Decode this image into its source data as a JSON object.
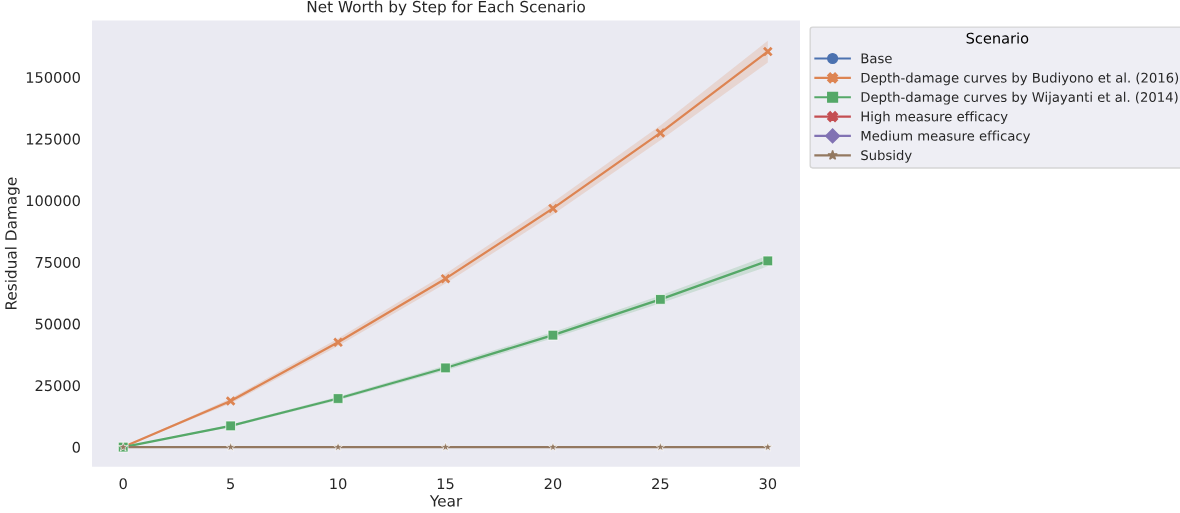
{
  "chart_data": {
    "type": "line",
    "title": "Net Worth by Step for Each Scenario",
    "xlabel": "Year",
    "ylabel": "Residual Damage",
    "legend_title": "Scenario",
    "legend": "top right",
    "grid": false,
    "x": [
      0,
      5,
      10,
      15,
      20,
      25,
      30
    ],
    "xlim": [
      -1.45,
      31.5
    ],
    "xticks": [
      0,
      5,
      10,
      15,
      20,
      25,
      30
    ],
    "ylim": [
      -8000,
      173000
    ],
    "yticks": [
      0,
      25000,
      50000,
      75000,
      100000,
      125000,
      150000
    ],
    "series": [
      {
        "name": "Base",
        "color": "#4c72b0",
        "marker": "circle",
        "values": [
          null,
          null,
          null,
          null,
          null,
          null,
          null
        ]
      },
      {
        "name": "Depth-damage curves by Budiyono et al. (2016)",
        "color": "#dd8452",
        "marker": "cross",
        "values": [
          0,
          18700,
          42500,
          68300,
          96800,
          127400,
          160400
        ],
        "lower": [
          0,
          17700,
          41000,
          66300,
          94300,
          124400,
          156000
        ],
        "upper": [
          0,
          19700,
          44000,
          70300,
          99300,
          130400,
          164800
        ]
      },
      {
        "name": "Depth-damage curves by Wijayanti et al. (2014)",
        "color": "#55a868",
        "marker": "square",
        "values": [
          0,
          8600,
          19700,
          32100,
          45400,
          59900,
          75500
        ],
        "lower": [
          0,
          8100,
          19000,
          31100,
          44100,
          58300,
          73300
        ],
        "upper": [
          0,
          9100,
          20400,
          33100,
          46700,
          61500,
          77700
        ]
      },
      {
        "name": "High measure efficacy",
        "color": "#c44e52",
        "marker": "cross",
        "values": [
          null,
          null,
          null,
          null,
          null,
          null,
          null
        ]
      },
      {
        "name": "Medium measure efficacy",
        "color": "#8172b3",
        "marker": "diamond",
        "values": [
          null,
          null,
          null,
          null,
          null,
          null,
          null
        ]
      },
      {
        "name": "Subsidy",
        "color": "#937860",
        "marker": "star",
        "values": [
          0,
          0,
          0,
          0,
          0,
          0,
          0
        ]
      }
    ]
  }
}
